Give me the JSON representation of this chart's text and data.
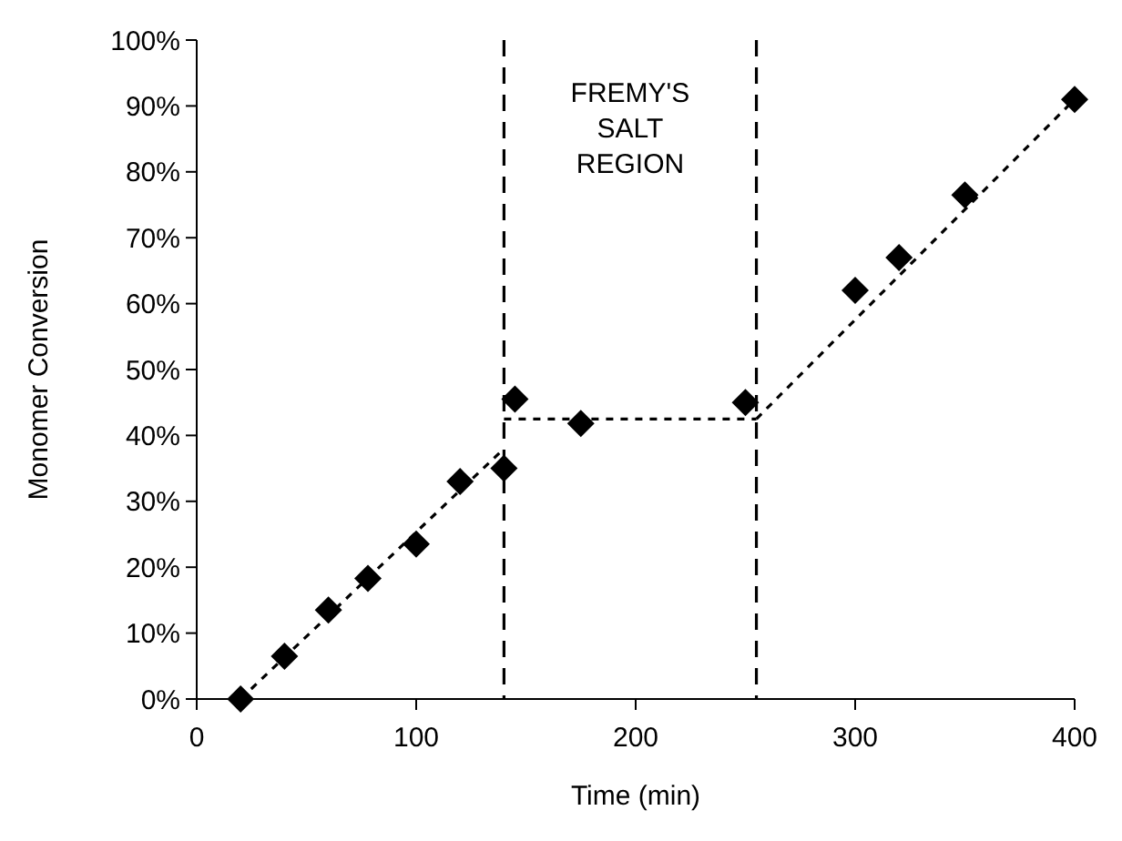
{
  "chart_data": {
    "type": "scatter",
    "xlabel": "Time (min)",
    "ylabel": "Monomer Conversion",
    "xlim": [
      0,
      400
    ],
    "xticks": [
      0,
      100,
      200,
      300,
      400
    ],
    "ylim": [
      0,
      100
    ],
    "yticks": [
      {
        "value": 0,
        "label": "0%"
      },
      {
        "value": 10,
        "label": "10%"
      },
      {
        "value": 20,
        "label": "20%"
      },
      {
        "value": 30,
        "label": "30%"
      },
      {
        "value": 40,
        "label": "40%"
      },
      {
        "value": 50,
        "label": "50%"
      },
      {
        "value": 60,
        "label": "60%"
      },
      {
        "value": 70,
        "label": "70%"
      },
      {
        "value": 80,
        "label": "80%"
      },
      {
        "value": 90,
        "label": "90%"
      },
      {
        "value": 100,
        "label": "100%"
      }
    ],
    "grid": false,
    "series": [
      {
        "color": "#000000",
        "marker": "diamond",
        "x": [
          20,
          40,
          60,
          78,
          100,
          120,
          140,
          145,
          175,
          250,
          300,
          320,
          350,
          400
        ],
        "values": [
          0,
          6.5,
          13.5,
          18.3,
          23.5,
          33,
          35,
          45.5,
          41.8,
          45,
          62,
          67,
          76.5,
          91
        ]
      },
      {
        "type": "line",
        "color": "#000000",
        "line_style": "dotted",
        "x": [
          20,
          140
        ],
        "values": [
          0,
          38
        ]
      },
      {
        "type": "line",
        "color": "#000000",
        "line_style": "dotted",
        "x": [
          140,
          255
        ],
        "values": [
          42.5,
          42.5
        ]
      },
      {
        "type": "line",
        "color": "#000000",
        "line_style": "dotted",
        "x": [
          255,
          400
        ],
        "values": [
          42.5,
          91
        ]
      }
    ],
    "ref_lines": [
      {
        "axis": "x",
        "value": 140,
        "line_style": "dashed",
        "color": "#000000"
      },
      {
        "axis": "x",
        "value": 255,
        "line_style": "dashed",
        "color": "#000000"
      }
    ],
    "annotations": [
      "FREMY'S SALT REGION"
    ]
  }
}
